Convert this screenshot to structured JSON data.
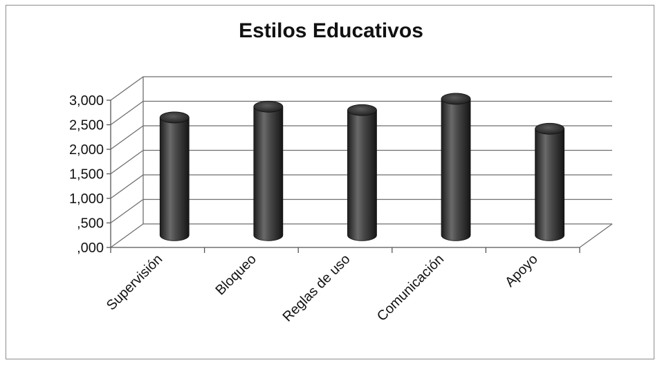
{
  "chart_data": {
    "type": "bar",
    "bar_style": "3d-cylinder",
    "title": "Estilos Educativos",
    "xlabel": "",
    "ylabel": "",
    "categories": [
      "Supervisión",
      "Bloqueo",
      "Reglas de uso",
      "Comunicación",
      "Apoyo"
    ],
    "values": [
      2.4,
      2.62,
      2.55,
      2.78,
      2.17
    ],
    "ylim": [
      0,
      3
    ],
    "yticks": [
      ",000",
      ",500",
      "1,000",
      "1,500",
      "2,000",
      "2,500",
      "3,000"
    ],
    "grid": true,
    "legend": "none",
    "colors": {
      "bar": "#2b2b2b",
      "bar_highlight": "#8a8a8a",
      "grid": "#6e6e6e",
      "axis": "#555555"
    }
  }
}
